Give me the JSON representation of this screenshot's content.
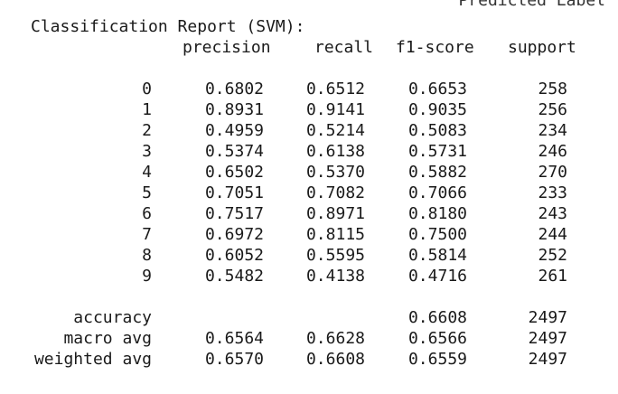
{
  "clipped_header": "Predicted Label",
  "title": "Classification Report (SVM):",
  "headers": [
    "precision",
    "recall",
    "f1-score",
    "support"
  ],
  "classes": [
    {
      "label": "0",
      "precision": "0.6802",
      "recall": "0.6512",
      "f1": "0.6653",
      "support": "258"
    },
    {
      "label": "1",
      "precision": "0.8931",
      "recall": "0.9141",
      "f1": "0.9035",
      "support": "256"
    },
    {
      "label": "2",
      "precision": "0.4959",
      "recall": "0.5214",
      "f1": "0.5083",
      "support": "234"
    },
    {
      "label": "3",
      "precision": "0.5374",
      "recall": "0.6138",
      "f1": "0.5731",
      "support": "246"
    },
    {
      "label": "4",
      "precision": "0.6502",
      "recall": "0.5370",
      "f1": "0.5882",
      "support": "270"
    },
    {
      "label": "5",
      "precision": "0.7051",
      "recall": "0.7082",
      "f1": "0.7066",
      "support": "233"
    },
    {
      "label": "6",
      "precision": "0.7517",
      "recall": "0.8971",
      "f1": "0.8180",
      "support": "243"
    },
    {
      "label": "7",
      "precision": "0.6972",
      "recall": "0.8115",
      "f1": "0.7500",
      "support": "244"
    },
    {
      "label": "8",
      "precision": "0.6052",
      "recall": "0.5595",
      "f1": "0.5814",
      "support": "252"
    },
    {
      "label": "9",
      "precision": "0.5482",
      "recall": "0.4138",
      "f1": "0.4716",
      "support": "261"
    }
  ],
  "summary": [
    {
      "label": "accuracy",
      "precision": "",
      "recall": "",
      "f1": "0.6608",
      "support": "2497"
    },
    {
      "label": "macro avg",
      "precision": "0.6564",
      "recall": "0.6628",
      "f1": "0.6566",
      "support": "2497"
    },
    {
      "label": "weighted avg",
      "precision": "0.6570",
      "recall": "0.6608",
      "f1": "0.6559",
      "support": "2497"
    }
  ]
}
